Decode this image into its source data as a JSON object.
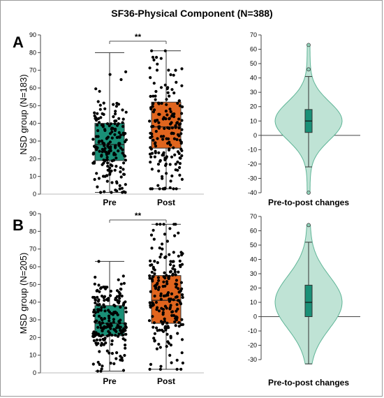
{
  "figure": {
    "title": "SF36-Physical Component (N=388)"
  },
  "chart_data": [
    {
      "panel": "A",
      "type": "box",
      "ylabel": "NSD group (N=183)",
      "categories": [
        "Pre",
        "Post"
      ],
      "ylim": [
        0,
        90
      ],
      "yticks": [
        0,
        10,
        20,
        30,
        40,
        50,
        60,
        70,
        80,
        90
      ],
      "significance": "**",
      "boxes": [
        {
          "category": "Pre",
          "color": "#1a9077",
          "min": 1,
          "q1": 19,
          "median": 28,
          "q3": 40,
          "max": 80
        },
        {
          "category": "Post",
          "color": "#e0651e",
          "min": 3,
          "q1": 26,
          "median": 38,
          "q3": 52,
          "max": 81
        }
      ]
    },
    {
      "panel": "A",
      "type": "violin",
      "xlabel": "Pre-to-post changes",
      "ylim": [
        -40,
        70
      ],
      "yticks": [
        -40,
        -30,
        -20,
        -10,
        0,
        10,
        20,
        30,
        40,
        50,
        60,
        70
      ],
      "color": "#1a9077",
      "box": {
        "min": -22,
        "q1": 2,
        "median": 10,
        "q3": 18,
        "max": 41
      },
      "outliers": [
        -40,
        46,
        63
      ]
    },
    {
      "panel": "B",
      "type": "box",
      "ylabel": "MSD group (N=205)",
      "categories": [
        "Pre",
        "Post"
      ],
      "ylim": [
        0,
        90
      ],
      "yticks": [
        0,
        10,
        20,
        30,
        40,
        50,
        60,
        70,
        80,
        90
      ],
      "significance": "**",
      "boxes": [
        {
          "category": "Pre",
          "color": "#1a9077",
          "min": 1,
          "q1": 21,
          "median": 28,
          "q3": 38,
          "max": 63
        },
        {
          "category": "Post",
          "color": "#e0651e",
          "min": 2,
          "q1": 28,
          "median": 41,
          "q3": 55,
          "max": 84
        }
      ]
    },
    {
      "panel": "B",
      "type": "violin",
      "xlabel": "Pre-to-post changes",
      "ylim": [
        -30,
        70
      ],
      "yticks": [
        -30,
        -20,
        -10,
        0,
        10,
        20,
        30,
        40,
        50,
        60,
        70
      ],
      "color": "#1a9077",
      "box": {
        "min": -33,
        "q1": 0,
        "median": 10,
        "q3": 22,
        "max": 52
      },
      "outliers": [
        64
      ]
    }
  ]
}
